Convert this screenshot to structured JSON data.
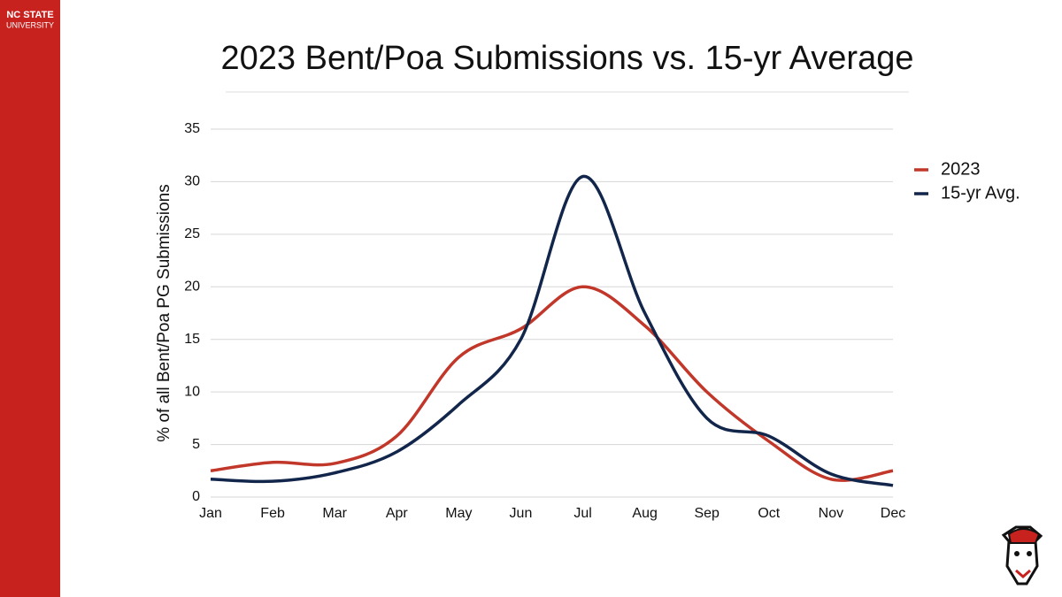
{
  "branding": {
    "line1": "NC STATE",
    "line2": "UNIVERSITY"
  },
  "chart_data": {
    "type": "line",
    "title": "2023 Bent/Poa Submissions vs. 15-yr Average",
    "y_label": "% of all Bent/Poa PG Submissions",
    "categories": [
      "Jan",
      "Feb",
      "Mar",
      "Apr",
      "May",
      "Jun",
      "Jul",
      "Aug",
      "Sep",
      "Oct",
      "Nov",
      "Dec"
    ],
    "series": [
      {
        "name": "2023",
        "color": "#c1372a",
        "values": [
          2.5,
          3.3,
          3.2,
          5.8,
          13.3,
          16,
          20,
          16.3,
          10,
          5.3,
          1.7,
          2.5
        ]
      },
      {
        "name": "15-yr Avg.",
        "color": "#12264b",
        "values": [
          1.7,
          1.5,
          2.3,
          4.3,
          8.8,
          15,
          30.5,
          17.5,
          7.5,
          5.8,
          2.2,
          1.1
        ]
      }
    ],
    "ylim": [
      0,
      35
    ],
    "yticks": [
      0,
      5,
      10,
      15,
      20,
      25,
      30,
      35
    ],
    "grid": true,
    "legend": "right",
    "smooth": true
  }
}
